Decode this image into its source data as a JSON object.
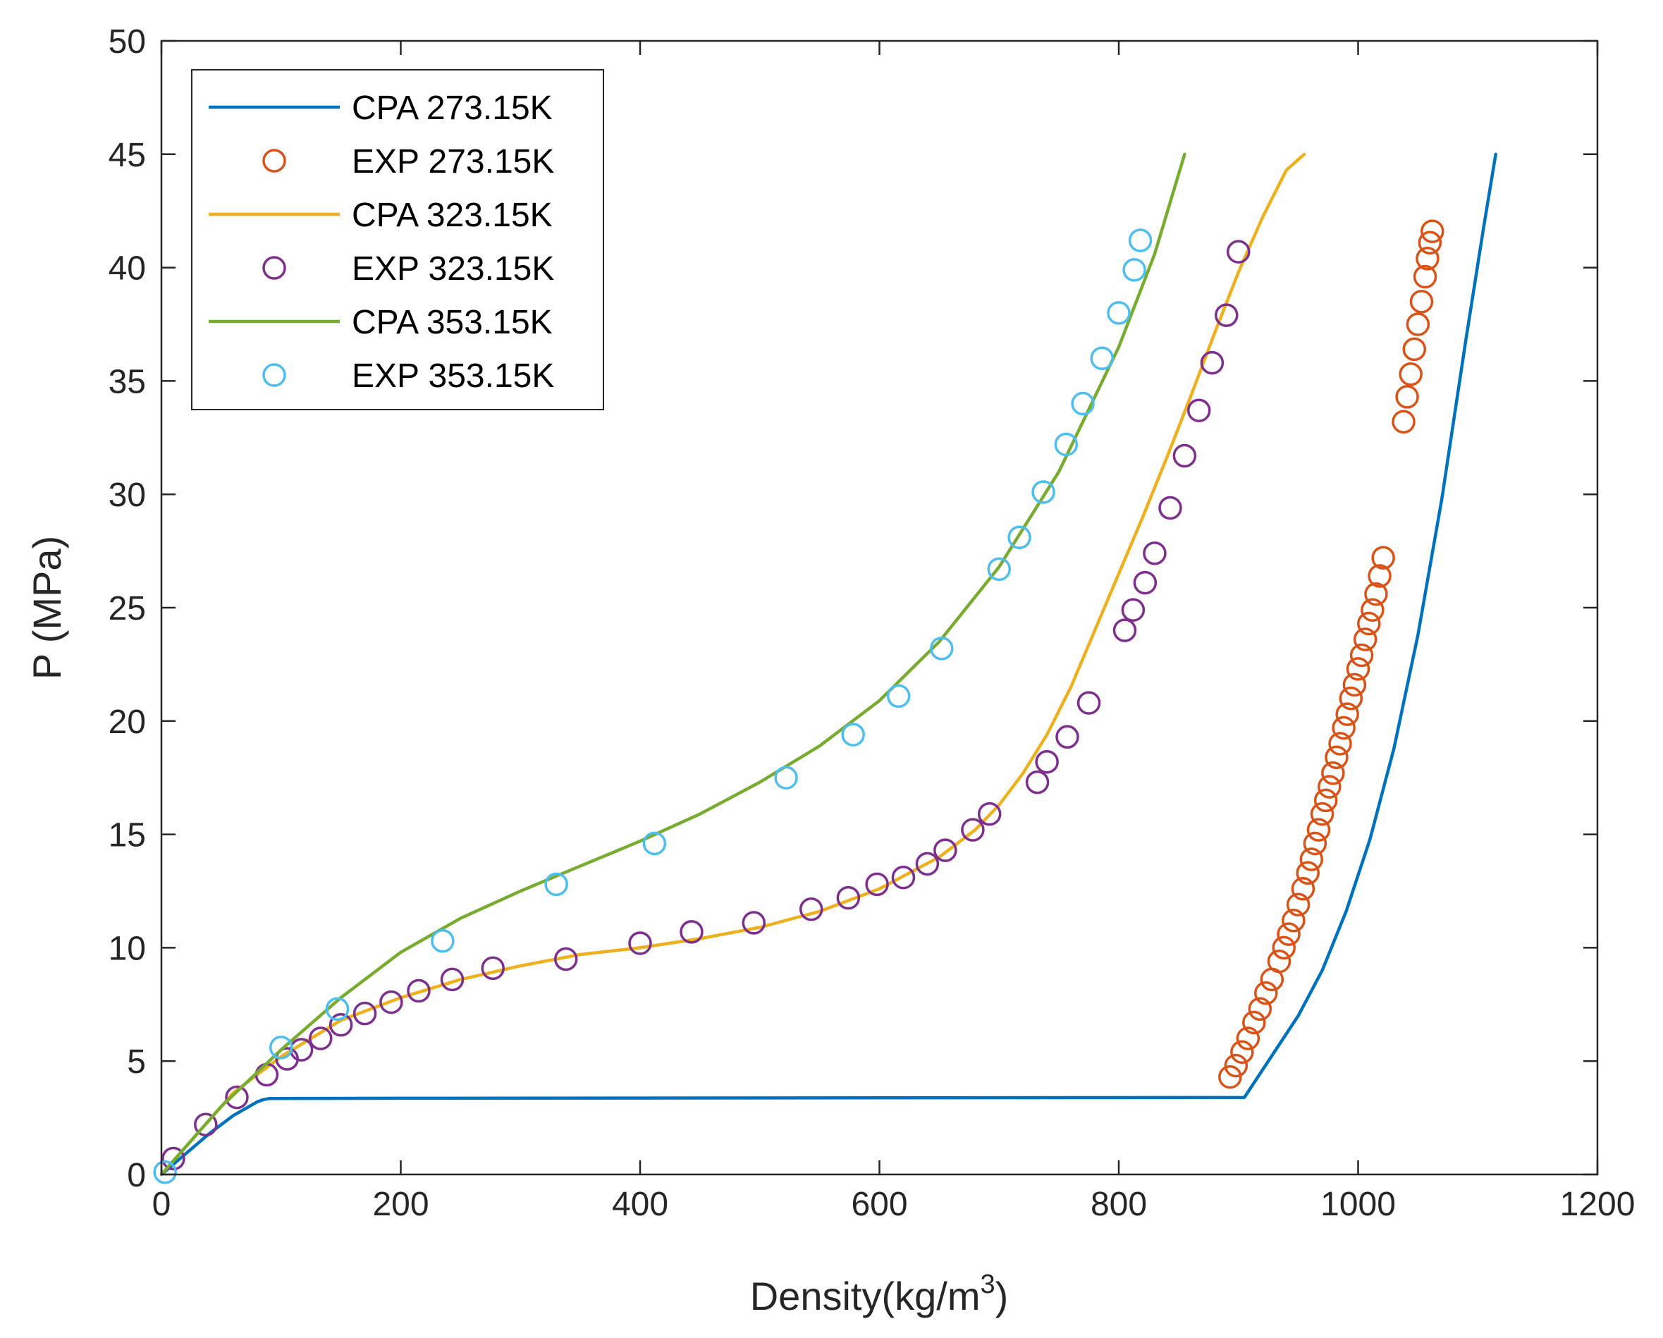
{
  "chart_data": {
    "type": "scatter",
    "title": "",
    "xlabel_prefix": "Density(kg/m",
    "xlabel_superscript": "3",
    "xlabel_suffix": ")",
    "ylabel": "P (MPa)",
    "xlim": [
      0,
      1200
    ],
    "ylim": [
      0,
      50
    ],
    "xticks": [
      0,
      200,
      400,
      600,
      800,
      1000,
      1200
    ],
    "yticks": [
      0,
      5,
      10,
      15,
      20,
      25,
      30,
      35,
      40,
      45,
      50
    ],
    "grid": false,
    "legend_position": "top-left",
    "series": [
      {
        "name": "CPA 273.15K",
        "kind": "line",
        "color": "#0072BD",
        "x": [
          0,
          20,
          40,
          60,
          80,
          85,
          90,
          200,
          400,
          600,
          800,
          905,
          915,
          930,
          950,
          970,
          990,
          1010,
          1030,
          1050,
          1070,
          1090,
          1105,
          1115
        ],
        "y": [
          0,
          0.9,
          1.8,
          2.6,
          3.2,
          3.3,
          3.35,
          3.36,
          3.37,
          3.38,
          3.39,
          3.4,
          4.2,
          5.4,
          7.0,
          9.0,
          11.6,
          14.8,
          18.8,
          23.8,
          29.8,
          36.8,
          41.8,
          45
        ]
      },
      {
        "name": "EXP 273.15K",
        "kind": "marker",
        "color": "#D95319",
        "x": [
          893,
          898,
          903,
          908,
          913,
          918,
          923,
          928,
          934,
          938,
          942,
          946,
          950,
          954,
          958,
          961,
          964,
          967,
          970,
          973,
          976,
          979,
          982,
          985,
          988,
          991,
          994,
          997,
          1000,
          1003,
          1006,
          1009,
          1012,
          1015,
          1018,
          1021,
          1038,
          1041,
          1044,
          1047,
          1050,
          1053,
          1056,
          1058,
          1060,
          1062
        ],
        "y": [
          4.3,
          4.8,
          5.4,
          6.0,
          6.7,
          7.3,
          8.0,
          8.6,
          9.4,
          10.0,
          10.6,
          11.2,
          11.9,
          12.6,
          13.3,
          13.9,
          14.6,
          15.2,
          15.9,
          16.5,
          17.1,
          17.7,
          18.4,
          19.0,
          19.7,
          20.3,
          21.0,
          21.6,
          22.3,
          22.9,
          23.6,
          24.3,
          24.9,
          25.6,
          26.4,
          27.2,
          33.2,
          34.3,
          35.3,
          36.4,
          37.5,
          38.5,
          39.6,
          40.4,
          41.1,
          41.6
        ]
      },
      {
        "name": "CPA 323.15K",
        "kind": "line",
        "color": "#EDB120",
        "x": [
          0,
          30,
          60,
          100,
          150,
          200,
          250,
          300,
          350,
          400,
          450,
          500,
          550,
          600,
          650,
          680,
          700,
          720,
          740,
          760,
          780,
          800,
          820,
          840,
          860,
          880,
          900,
          920,
          940,
          955
        ],
        "y": [
          0,
          1.8,
          3.6,
          5.2,
          6.8,
          7.8,
          8.6,
          9.2,
          9.7,
          10.0,
          10.4,
          10.9,
          11.6,
          12.6,
          14.0,
          15.2,
          16.3,
          17.7,
          19.4,
          21.5,
          24.0,
          26.5,
          29.0,
          31.6,
          34.3,
          37.1,
          39.8,
          42.2,
          44.3,
          45
        ]
      },
      {
        "name": "EXP 323.15K",
        "kind": "marker",
        "color": "#7E2F8E",
        "x": [
          10,
          37,
          63,
          88,
          105,
          117,
          133,
          150,
          170,
          192,
          215,
          243,
          277,
          338,
          400,
          443,
          495,
          543,
          574,
          598,
          620,
          640,
          655,
          678,
          692,
          732,
          740,
          757,
          775,
          805,
          812,
          822,
          830,
          843,
          855,
          867,
          878,
          890,
          900
        ],
        "y": [
          0.7,
          2.2,
          3.4,
          4.4,
          5.1,
          5.5,
          6.0,
          6.6,
          7.1,
          7.6,
          8.1,
          8.6,
          9.1,
          9.5,
          10.2,
          10.7,
          11.1,
          11.7,
          12.2,
          12.8,
          13.1,
          13.7,
          14.3,
          15.2,
          15.9,
          17.3,
          18.2,
          19.3,
          20.8,
          24.0,
          24.9,
          26.1,
          27.4,
          29.4,
          31.7,
          33.7,
          35.8,
          37.9,
          40.7
        ]
      },
      {
        "name": "CPA 353.15K",
        "kind": "line",
        "color": "#77AC30",
        "x": [
          0,
          50,
          100,
          150,
          200,
          250,
          300,
          350,
          400,
          450,
          500,
          550,
          600,
          650,
          700,
          750,
          800,
          830,
          855
        ],
        "y": [
          0,
          3.0,
          5.5,
          7.8,
          9.8,
          11.3,
          12.5,
          13.6,
          14.7,
          15.9,
          17.3,
          18.9,
          20.9,
          23.5,
          26.8,
          31.0,
          36.5,
          40.6,
          45
        ]
      },
      {
        "name": "EXP 353.15K",
        "kind": "marker",
        "color": "#4DBEEE",
        "x": [
          3,
          100,
          147,
          235,
          330,
          412,
          522,
          578,
          616,
          652,
          700,
          717,
          737,
          756,
          770,
          786,
          800,
          813,
          818
        ],
        "y": [
          0.1,
          5.6,
          7.3,
          10.3,
          12.8,
          14.6,
          17.5,
          19.4,
          21.1,
          23.2,
          26.7,
          28.1,
          30.1,
          32.2,
          34.0,
          36.0,
          38.0,
          39.9,
          41.2
        ]
      }
    ]
  }
}
